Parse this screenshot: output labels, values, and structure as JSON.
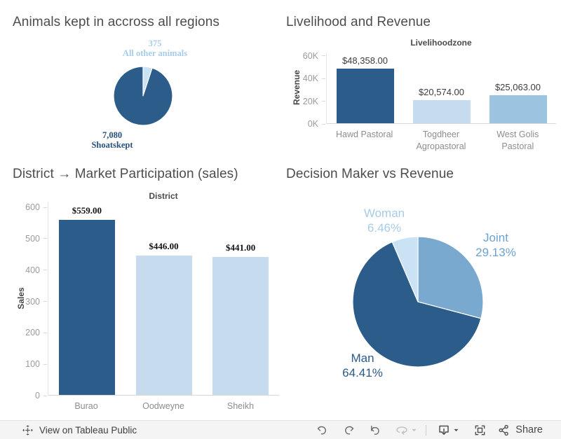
{
  "palette": {
    "dark": "#2b5c8a",
    "medium": "#7aa9d0",
    "mediumlight": "#9cc3e0",
    "light": "#c6dbed",
    "lighter": "#c9e3f4",
    "label_light_blue": "#a6cce9",
    "label_medium_blue": "#6ba3cd",
    "label_dark_blue": "#2b5b89"
  },
  "chart_data": [
    {
      "type": "pie",
      "title": "Animals kept in accross all regions",
      "legend_position": "none",
      "slices": [
        {
          "label": "All other animals",
          "value": 375,
          "value_display": "375",
          "color": "lighter"
        },
        {
          "label": "Shoatskept",
          "value": 7080,
          "value_display": "7,080",
          "color": "dark"
        }
      ]
    },
    {
      "type": "bar",
      "title": "Livelihood and Revenue",
      "column_header": "Livelihoodzone",
      "xlabel": "Livelihoodzone",
      "ylabel": "Revenue",
      "categories": [
        "Hawd Pastoral",
        "Togdheer Agropastoral",
        "West Golis Pastoral"
      ],
      "values": [
        48358,
        20574,
        25063
      ],
      "value_labels": [
        "$48,358.00",
        "$20,574.00",
        "$25,063.00"
      ],
      "bar_colors": [
        "dark",
        "light",
        "mediumlight"
      ],
      "ymax": 63000,
      "yticks": [
        {
          "v": 0,
          "label": "0K"
        },
        {
          "v": 20000,
          "label": "20K"
        },
        {
          "v": 40000,
          "label": "40K"
        },
        {
          "v": 60000,
          "label": "60K"
        }
      ],
      "grid": false
    },
    {
      "type": "bar",
      "title": "District → Market Participation (sales)",
      "column_header": "District",
      "xlabel": "District",
      "ylabel": "Sales",
      "categories": [
        "Burao",
        "Oodweyne",
        "Sheikh"
      ],
      "values": [
        559,
        446,
        441
      ],
      "value_labels": [
        "$559.00",
        "$446.00",
        "$441.00"
      ],
      "bar_colors": [
        "dark",
        "light",
        "light"
      ],
      "ymax": 618,
      "yticks": [
        {
          "v": 0,
          "label": "0"
        },
        {
          "v": 100,
          "label": "100"
        },
        {
          "v": 200,
          "label": "200"
        },
        {
          "v": 300,
          "label": "300"
        },
        {
          "v": 400,
          "label": "400"
        },
        {
          "v": 500,
          "label": "500"
        },
        {
          "v": 600,
          "label": "600"
        }
      ],
      "grid": false
    },
    {
      "type": "pie",
      "title": "Decision Maker vs Revenue",
      "legend_position": "none",
      "slices": [
        {
          "label": "Joint",
          "value": 29.13,
          "pct_display": "29.13%",
          "color": "medium"
        },
        {
          "label": "Man",
          "value": 64.41,
          "pct_display": "64.41%",
          "color": "dark"
        },
        {
          "label": "Woman",
          "value": 6.46,
          "pct_display": "6.46%",
          "color": "lighter"
        }
      ]
    }
  ],
  "footer": {
    "view_label": "View on Tableau Public",
    "share_label": "Share"
  }
}
